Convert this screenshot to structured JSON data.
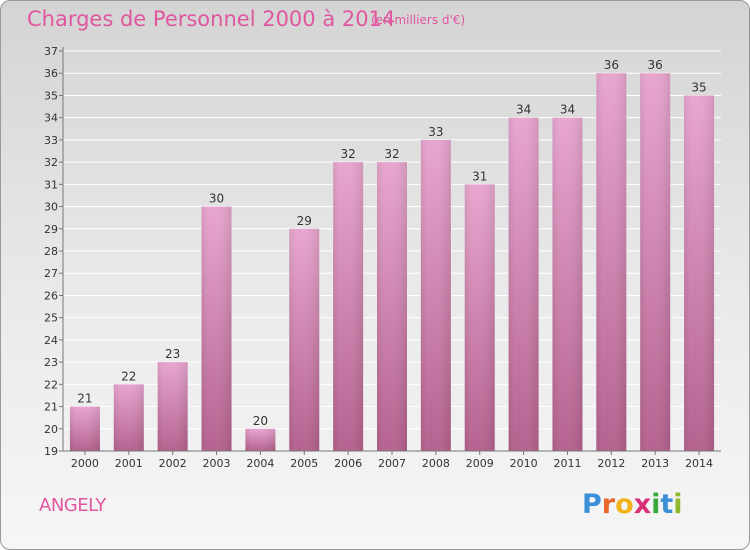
{
  "header": {
    "title": "Charges de Personnel 2000 à 2014",
    "unit": "(en milliers d'€)"
  },
  "footer": {
    "commune": "ANGELY",
    "logo_letters": [
      "P",
      "r",
      "o",
      "x",
      "i",
      "t",
      "i"
    ],
    "logo_colors": [
      "#3a8fd6",
      "#e8692a",
      "#f2b21b",
      "#d9307a",
      "#3aa83a",
      "#3a8fd6",
      "#8fb92d"
    ]
  },
  "chart_data": {
    "type": "bar",
    "categories": [
      "2000",
      "2001",
      "2002",
      "2003",
      "2004",
      "2005",
      "2006",
      "2007",
      "2008",
      "2009",
      "2010",
      "2011",
      "2012",
      "2013",
      "2014"
    ],
    "values": [
      21,
      22,
      23,
      30,
      20,
      29,
      32,
      32,
      33,
      31,
      34,
      34,
      36,
      36,
      35
    ],
    "title": "Charges de Personnel 2000 à 2014",
    "ylim": [
      19,
      37
    ],
    "yticks": [
      19,
      20,
      21,
      22,
      23,
      24,
      25,
      26,
      27,
      28,
      29,
      30,
      31,
      32,
      33,
      34,
      35,
      36,
      37
    ],
    "grid": true,
    "colors": {
      "bar_top": "#e8a6cf",
      "bar_bottom": "#b5628f",
      "grid": "#ffffff"
    }
  }
}
